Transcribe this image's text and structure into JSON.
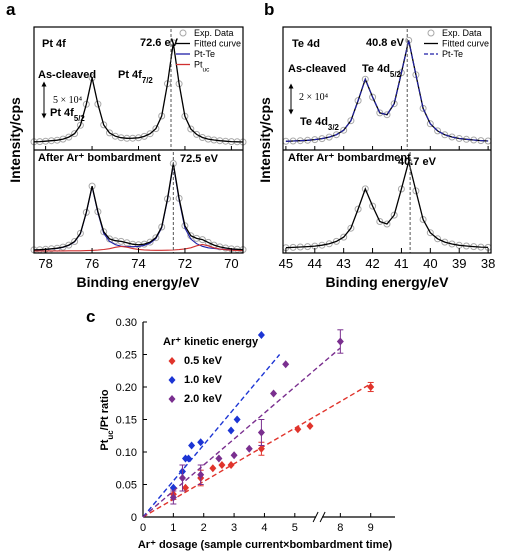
{
  "chart_data": [
    {
      "type": "line",
      "title": "a",
      "element": "Pt 4f",
      "xlabel": "Binding energy/eV",
      "ylabel": "Intensity/cps",
      "xlim": [
        78.5,
        69.5
      ],
      "xticks": [
        78,
        76,
        74,
        72,
        70
      ],
      "x": [
        78.5,
        78.25,
        78.0,
        77.75,
        77.5,
        77.25,
        77.0,
        76.75,
        76.5,
        76.25,
        76.0,
        75.75,
        75.5,
        75.25,
        75.0,
        74.75,
        74.5,
        74.25,
        74.0,
        73.75,
        73.5,
        73.25,
        73.0,
        72.75,
        72.5,
        72.25,
        72.0,
        71.75,
        71.5,
        71.25,
        71.0,
        70.75,
        70.5,
        70.25,
        70.0,
        69.75,
        69.5
      ],
      "panels": [
        {
          "state": "As-cleaved",
          "peak_label": "72.6 eV",
          "vline": 72.6,
          "peak_names": [
            {
              "text": "Pt 4f",
              "sub": "7/2"
            },
            {
              "text": "Pt 4f",
              "sub": "5/2"
            }
          ],
          "scale_bar": "5 × 10⁴",
          "ylim": [
            0,
            105
          ],
          "series": [
            {
              "name": "Exp. Data",
              "style": "marker",
              "color": "#a8a8a8",
              "values": [
                7.0,
                7.2,
                7.5,
                7.9,
                8.4,
                9.3,
                11.0,
                14.0,
                21.1,
                39.0,
                61.6,
                39.2,
                21.4,
                14.6,
                11.8,
                10.5,
                10.0,
                10.1,
                10.4,
                11.6,
                13.9,
                18.3,
                29.0,
                56.6,
                91.4,
                56.5,
                28.8,
                17.9,
                13.3,
                10.7,
                9.3,
                8.5,
                7.9,
                7.5,
                7.2,
                7.0,
                6.8
              ]
            },
            {
              "name": "Fitted curve",
              "style": "line",
              "color": "#000000",
              "values": [
                7.0,
                7.2,
                7.5,
                7.9,
                8.4,
                9.3,
                11.0,
                14.0,
                21.1,
                39.0,
                61.6,
                39.2,
                21.4,
                14.6,
                11.8,
                10.5,
                10.0,
                10.1,
                10.4,
                11.6,
                13.9,
                18.3,
                29.0,
                56.6,
                91.4,
                56.5,
                28.8,
                17.9,
                13.3,
                10.7,
                9.3,
                8.5,
                7.9,
                7.5,
                7.2,
                7.0,
                6.8
              ]
            }
          ]
        },
        {
          "state": "After Ar⁺ bombardment",
          "peak_label": "72.5 eV",
          "vline": 72.5,
          "ylim": [
            0,
            110
          ],
          "series": [
            {
              "style": "marker",
              "color": "#a8a8a8",
              "values": [
                3.3,
                3.5,
                4.0,
                4.5,
                5.1,
                6.3,
                8.4,
                12.3,
                20.9,
                43.4,
                71.5,
                44.1,
                22.6,
                15.1,
                13.1,
                12.4,
                10.9,
                9.4,
                8.8,
                9.5,
                11.6,
                16.3,
                27.8,
                57.8,
                95.6,
                58.3,
                29.0,
                18.5,
                15.6,
                14.3,
                11.3,
                8.4,
                6.5,
                5.3,
                4.4,
                4.0,
                3.6
              ]
            },
            {
              "name": "Pt-Te",
              "style": "line",
              "color": "#1f1fa8",
              "values": [
                3.2,
                3.4,
                3.8,
                4.3,
                4.9,
                6.1,
                8.1,
                11.9,
                20.5,
                42.8,
                70.7,
                43.0,
                20.9,
                12.5,
                9.0,
                7.3,
                6.7,
                6.7,
                7.0,
                8.2,
                10.6,
                15.4,
                26.9,
                56.8,
                94.4,
                56.7,
                26.6,
                14.9,
                9.9,
                7.2,
                5.6,
                4.8,
                4.2,
                3.8,
                3.4,
                3.2,
                3.0
              ]
            },
            {
              "name": {
                "text": "Pt",
                "sub": "uc"
              },
              "style": "line",
              "color": "#d03030",
              "values": [
                2.1,
                2.1,
                2.2,
                2.2,
                2.2,
                2.2,
                2.3,
                2.4,
                2.4,
                2.6,
                2.8,
                3.1,
                3.7,
                4.6,
                6.1,
                7.1,
                6.2,
                4.7,
                3.8,
                3.3,
                3.0,
                2.9,
                2.9,
                3.0,
                3.2,
                3.6,
                4.4,
                5.6,
                7.7,
                9.1,
                7.7,
                5.6,
                4.3,
                3.5,
                3.0,
                2.8,
                2.6
              ]
            },
            {
              "style": "line",
              "color": "#000000",
              "values": [
                3.3,
                3.5,
                4.0,
                4.5,
                5.1,
                6.3,
                8.4,
                12.3,
                20.9,
                43.4,
                71.5,
                44.1,
                22.6,
                15.1,
                13.1,
                12.4,
                10.9,
                9.4,
                8.8,
                9.5,
                11.6,
                16.3,
                27.8,
                57.8,
                95.6,
                58.3,
                29.0,
                18.5,
                15.6,
                14.3,
                11.3,
                8.4,
                6.5,
                5.3,
                4.4,
                4.0,
                3.6
              ]
            }
          ]
        }
      ]
    },
    {
      "type": "line",
      "title": "b",
      "element": "Te 4d",
      "xlabel": "Binding energy/eV",
      "ylabel": "Intensity/cps",
      "xlim": [
        45.1,
        37.9
      ],
      "xticks": [
        45,
        44,
        43,
        42,
        41,
        40,
        39,
        38
      ],
      "x": [
        45.0,
        44.75,
        44.5,
        44.25,
        44.0,
        43.75,
        43.5,
        43.25,
        43.0,
        42.75,
        42.5,
        42.25,
        42.0,
        41.75,
        41.5,
        41.25,
        41.0,
        40.75,
        40.5,
        40.25,
        40.0,
        39.75,
        39.5,
        39.25,
        39.0,
        38.75,
        38.5,
        38.25,
        38.0
      ],
      "panels": [
        {
          "state": "As-cleaved",
          "peak_label": "40.8 eV",
          "vline": 40.8,
          "peak_names": [
            {
              "text": "Te 4d",
              "sub": "5/2"
            },
            {
              "text": "Te 4d",
              "sub": "3/2"
            }
          ],
          "scale_bar": "2 × 10⁴",
          "ylim": [
            0,
            105
          ],
          "series": [
            {
              "name": "Exp. Data",
              "style": "marker",
              "color": "#a8a8a8",
              "values": [
                7.4,
                7.7,
                7.9,
                8.3,
                8.9,
                9.7,
                11.0,
                13.1,
                16.9,
                25.0,
                42.2,
                60.4,
                45.2,
                31.7,
                30.1,
                39.5,
                65.9,
                93.6,
                64.2,
                35.5,
                22.4,
                16.3,
                13.0,
                11.1,
                9.8,
                9.1,
                8.5,
                8.0,
                7.7
              ]
            },
            {
              "name": "Fitted curve",
              "style": "line",
              "color": "#000000",
              "values": [
                7.4,
                7.7,
                7.9,
                8.3,
                8.9,
                9.7,
                11.0,
                13.1,
                16.9,
                25.0,
                42.2,
                60.4,
                45.2,
                31.7,
                30.1,
                39.5,
                65.9,
                93.6,
                64.2,
                35.5,
                22.4,
                16.3,
                13.0,
                11.1,
                9.8,
                9.1,
                8.5,
                8.0,
                7.7
              ]
            },
            {
              "name": "Pt-Te",
              "style": "dashed",
              "color": "#1f1fa8",
              "values": [
                7.4,
                7.7,
                7.9,
                8.3,
                8.9,
                9.7,
                11.0,
                13.1,
                16.9,
                25.0,
                42.2,
                60.4,
                45.2,
                31.7,
                30.1,
                39.5,
                65.9,
                93.6,
                64.2,
                35.5,
                22.4,
                16.3,
                13.0,
                11.1,
                9.8,
                9.1,
                8.5,
                8.0,
                7.7
              ]
            }
          ]
        },
        {
          "state": "After Ar⁺ bombardment",
          "peak_label": "40.7 eV",
          "vline": 40.7,
          "ylim": [
            0,
            107
          ],
          "series": [
            {
              "style": "marker",
              "color": "#a8a8a8",
              "values": [
                5.5,
                5.8,
                6.2,
                6.7,
                7.2,
                8.1,
                9.6,
                12.1,
                16.5,
                25.8,
                45.6,
                66.6,
                48.7,
                32.7,
                30.1,
                39.4,
                66.5,
                95.0,
                64.5,
                34.8,
                21.1,
                14.7,
                11.3,
                9.4,
                8.0,
                7.3,
                6.6,
                6.1,
                5.8
              ]
            },
            {
              "style": "line",
              "color": "#000000",
              "values": [
                5.5,
                5.8,
                6.2,
                6.7,
                7.2,
                8.1,
                9.6,
                12.1,
                16.5,
                25.8,
                45.6,
                66.6,
                48.7,
                32.7,
                30.1,
                39.4,
                66.5,
                95.0,
                64.5,
                34.8,
                21.1,
                14.7,
                11.3,
                9.4,
                8.0,
                7.3,
                6.6,
                6.1,
                5.8
              ]
            }
          ]
        }
      ]
    },
    {
      "type": "scatter",
      "title": "c",
      "xlabel": "Ar⁺ dosage (sample current×bombardment time)",
      "ylabel": {
        "text": "Pt",
        "sub": "uc",
        "after": "/Pt ratio"
      },
      "legend_title": "Ar⁺ kinetic energy",
      "xlim": [
        0,
        9.8
      ],
      "xbreak": [
        5.8,
        7.3
      ],
      "xticks": [
        0,
        1,
        2,
        3,
        4,
        5,
        8,
        9
      ],
      "ylim": [
        0,
        0.3
      ],
      "yticks": [
        0,
        0.05,
        {
          "value": 0.1,
          "label": "0.10"
        },
        0.15,
        {
          "value": 0.2,
          "label": "0.20"
        },
        0.25,
        {
          "value": 0.3,
          "label": "0.30"
        }
      ],
      "series": [
        {
          "name": "0.5 keV",
          "color": "#e0342c",
          "x": [
            1.0,
            1.4,
            1.9,
            2.3,
            2.6,
            2.9,
            3.9,
            5.1,
            5.5,
            9.0
          ],
          "values": [
            0.035,
            0.045,
            0.06,
            0.075,
            0.08,
            0.08,
            0.105,
            0.135,
            0.14,
            0.2
          ],
          "errors": [
            0.008,
            null,
            0.012,
            null,
            null,
            null,
            0.01,
            null,
            null,
            0.007
          ],
          "fit_x": [
            0,
            9.0
          ],
          "fit_values": [
            0,
            0.205
          ]
        },
        {
          "name": "1.0 keV",
          "color": "#1c35d4",
          "x": [
            1.0,
            1.3,
            1.4,
            1.5,
            1.6,
            1.9,
            2.9,
            3.1,
            3.9
          ],
          "values": [
            0.045,
            0.07,
            0.09,
            0.09,
            0.11,
            0.115,
            0.133,
            0.15,
            0.28
          ],
          "errors": [
            null,
            0.01,
            null,
            null,
            null,
            null,
            null,
            null,
            null
          ],
          "fit_x": [
            0,
            4.5
          ],
          "fit_values": [
            0,
            0.25
          ]
        },
        {
          "name": "2.0 keV",
          "color": "#7a2f8f",
          "x": [
            1.0,
            1.3,
            1.9,
            2.5,
            3.0,
            3.5,
            3.9,
            4.3,
            4.7,
            8.0
          ],
          "values": [
            0.03,
            0.06,
            0.065,
            0.09,
            0.095,
            0.105,
            0.13,
            0.19,
            0.235,
            0.27
          ],
          "errors": [
            0.01,
            0.02,
            0.015,
            null,
            null,
            null,
            0.02,
            null,
            null,
            0.018
          ],
          "fit_x": [
            0,
            8.0
          ],
          "fit_values": [
            0,
            0.26
          ]
        }
      ]
    }
  ]
}
